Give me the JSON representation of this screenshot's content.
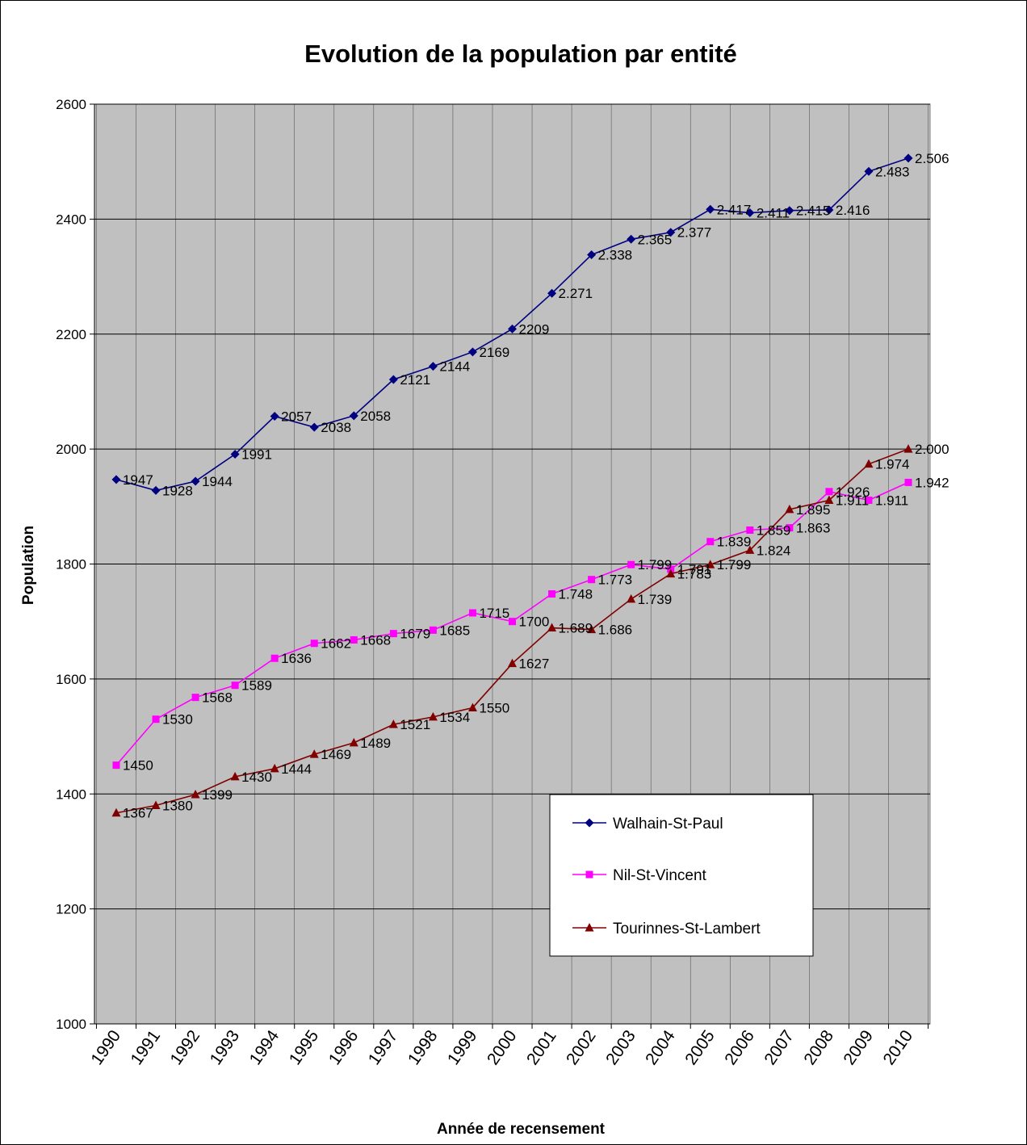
{
  "chart_data": {
    "type": "line",
    "title": "Evolution de la population par entité",
    "xlabel": "Année de recensement",
    "ylabel": "Population",
    "ylim": [
      1000,
      2600
    ],
    "yticks": [
      1000,
      1200,
      1400,
      1600,
      1800,
      2000,
      2200,
      2400,
      2600
    ],
    "grid": true,
    "legend_position": "lower-right",
    "categories": [
      "1990",
      "1991",
      "1992",
      "1993",
      "1994",
      "1995",
      "1996",
      "1997",
      "1998",
      "1999",
      "2000",
      "2001",
      "2002",
      "2003",
      "2004",
      "2005",
      "2006",
      "2007",
      "2008",
      "2009",
      "2010"
    ],
    "series": [
      {
        "name": "Walhain-St-Paul",
        "color": "#000080",
        "marker": "diamond",
        "values": [
          1947,
          1928,
          1944,
          1991,
          2057,
          2038,
          2058,
          2121,
          2144,
          2169,
          2209,
          2271,
          2338,
          2365,
          2377,
          2417,
          2411,
          2415,
          2416,
          2483,
          2506
        ],
        "labels": [
          "1947",
          "1928",
          "1944",
          "1991",
          "2057",
          "2038",
          "2058",
          "2121",
          "2144",
          "2169",
          "2209",
          "2.271",
          "2.338",
          "2.365",
          "2.377",
          "2.417",
          "2.411",
          "2.415",
          "2.416",
          "2.483",
          "2.506"
        ]
      },
      {
        "name": "Nil-St-Vincent",
        "color": "#ff00ff",
        "marker": "square",
        "values": [
          1450,
          1530,
          1568,
          1589,
          1636,
          1662,
          1668,
          1679,
          1685,
          1715,
          1700,
          1748,
          1773,
          1799,
          1791,
          1839,
          1859,
          1863,
          1926,
          1911,
          1942
        ],
        "labels": [
          "1450",
          "1530",
          "1568",
          "1589",
          "1636",
          "1662",
          "1668",
          "1679",
          "1685",
          "1715",
          "1700",
          "1.748",
          "1.773",
          "1.799",
          "1.791",
          "1.839",
          "1.859",
          "1.863",
          "1.926",
          "1.911",
          "1.942"
        ]
      },
      {
        "name": "Tourinnes-St-Lambert",
        "color": "#800000",
        "marker": "triangle",
        "values": [
          1367,
          1380,
          1399,
          1430,
          1444,
          1469,
          1489,
          1521,
          1534,
          1550,
          1627,
          1689,
          1686,
          1739,
          1783,
          1799,
          1824,
          1895,
          1911,
          1974,
          2000
        ],
        "labels": [
          "1367",
          "1380",
          "1399",
          "1430",
          "1444",
          "1469",
          "1489",
          "1521",
          "1534",
          "1550",
          "1627",
          "1.689",
          "1.686",
          "1.739",
          "1.783",
          "1.799",
          "1.824",
          "1.895",
          "1.911",
          "1.974",
          "2.000"
        ]
      }
    ],
    "colors": {
      "plot_background": "#c0c0c0",
      "gridline": "#000000"
    }
  }
}
